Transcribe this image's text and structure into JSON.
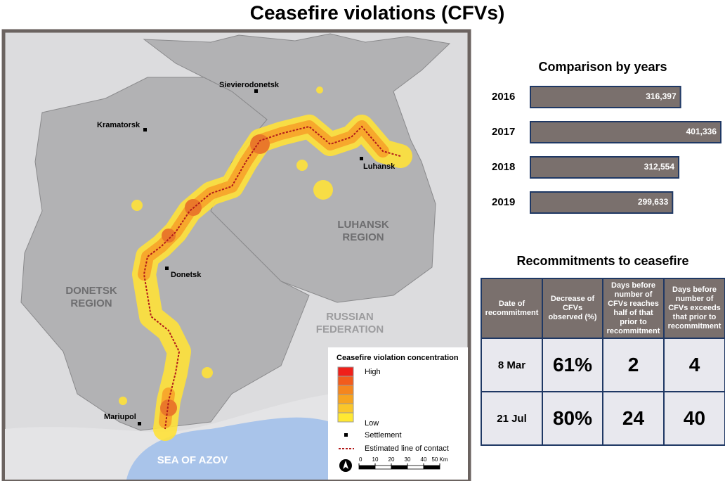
{
  "title": "Ceasefire violations (CFVs)",
  "map": {
    "settlements": [
      "Sievierodonetsk",
      "Kramatorsk",
      "Luhansk",
      "Donetsk",
      "Mariupol"
    ],
    "region_labels": [
      [
        "LUHANSK",
        "REGION"
      ],
      [
        "DONETSK",
        "REGION"
      ],
      [
        "RUSSIAN",
        "FEDERATION"
      ]
    ],
    "sea_label": "SEA OF AZOV",
    "legend": {
      "title": "Ceasefire violation concentration",
      "high": "High",
      "low": "Low",
      "settlement": "Settlement",
      "line": "Estimated line of contact"
    },
    "scale_ticks": [
      0,
      10,
      20,
      30,
      40,
      {
        "value": 50,
        "label": "50 Km"
      }
    ]
  },
  "chart_data": {
    "type": "bar",
    "orientation": "horizontal",
    "title": "Comparison by years",
    "categories": [
      "2016",
      "2017",
      "2018",
      "2019"
    ],
    "values": [
      316397,
      401336,
      312554,
      299633
    ],
    "value_labels": [
      "316,397",
      "401,336",
      "312,554",
      "299,633"
    ],
    "color": "#7a706d"
  },
  "table": {
    "title": "Recommitments to ceasefire",
    "headers": [
      "Date of recommitment",
      "Decrease of CFVs observed (%)",
      "Days before number of CFVs reaches half of that prior to recommitment",
      "Days before number of CFVs exceeds that prior to recommitment"
    ],
    "rows": [
      [
        "8 Mar",
        "61%",
        "2",
        "4"
      ],
      [
        "21 Jul",
        "80%",
        "24",
        "40"
      ]
    ]
  }
}
